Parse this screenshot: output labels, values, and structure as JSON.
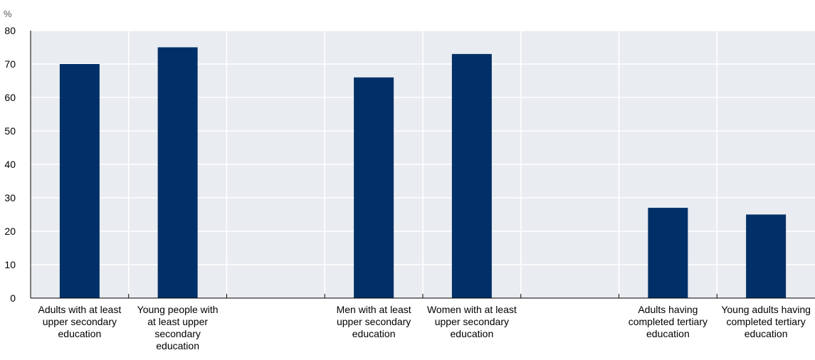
{
  "chart_data": {
    "type": "bar",
    "title": "",
    "xlabel": "",
    "ylabel": "%",
    "ylim": [
      0,
      80
    ],
    "yticks": [
      0,
      10,
      20,
      30,
      40,
      50,
      60,
      70,
      80
    ],
    "grid": true,
    "categories": [
      [
        "Adults with at least",
        "upper secondary",
        "education"
      ],
      [
        "Young people with",
        "at least upper",
        "secondary",
        "education"
      ],
      [],
      [
        "Men with at least",
        "upper secondary",
        "education"
      ],
      [
        "Women with at least",
        "upper secondary",
        "education"
      ],
      [],
      [
        "Adults having",
        "completed tertiary",
        "education"
      ],
      [
        "Young adults having",
        "completed tertiary",
        "education"
      ]
    ],
    "values": [
      70,
      75,
      null,
      66,
      73,
      null,
      27,
      25
    ],
    "bar_color": "#003067",
    "grid_color": "#ffffff",
    "plot_background": "#e9ecf0"
  }
}
